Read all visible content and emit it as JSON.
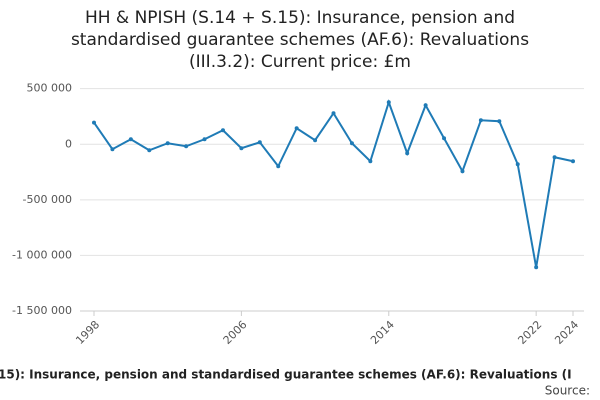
{
  "chart_data": {
    "type": "line",
    "title": [
      "HH & NPISH (S.14 + S.15): Insurance, pension and",
      "standardised guarantee schemes (AF.6): Revaluations",
      "(III.3.2): Current price: £m"
    ],
    "x": [
      1998,
      1999,
      2000,
      2001,
      2002,
      2003,
      2004,
      2005,
      2006,
      2007,
      2008,
      2009,
      2010,
      2011,
      2012,
      2013,
      2014,
      2015,
      2016,
      2017,
      2018,
      2019,
      2020,
      2021,
      2022,
      2023,
      2024
    ],
    "values": [
      195000,
      -45000,
      45000,
      -54000,
      9000,
      -18000,
      45000,
      126000,
      -36000,
      18000,
      -198000,
      144000,
      36000,
      279000,
      9000,
      -153000,
      378000,
      -81000,
      351000,
      54000,
      -243000,
      216000,
      207000,
      -180000,
      -1107000,
      -117000,
      -153000
    ],
    "color": "#1f7bb6",
    "xlim": [
      1998,
      2024
    ],
    "xticks": [
      1998,
      2006,
      2014,
      2022,
      2024
    ],
    "ylim": [
      -1500000,
      560000
    ],
    "yticks": [
      {
        "value": 500000,
        "label": "500 000"
      },
      0,
      {
        "value": -500000,
        "label": "-500 000"
      },
      {
        "value": -1000000,
        "label": "-1 000 000"
      },
      {
        "value": -1500000,
        "label": "-1 500 000"
      }
    ],
    "grid": true,
    "caption": "15): Insurance, pension and standardised guarantee schemes (AF.6): Revaluations (I",
    "source": "Source:"
  }
}
